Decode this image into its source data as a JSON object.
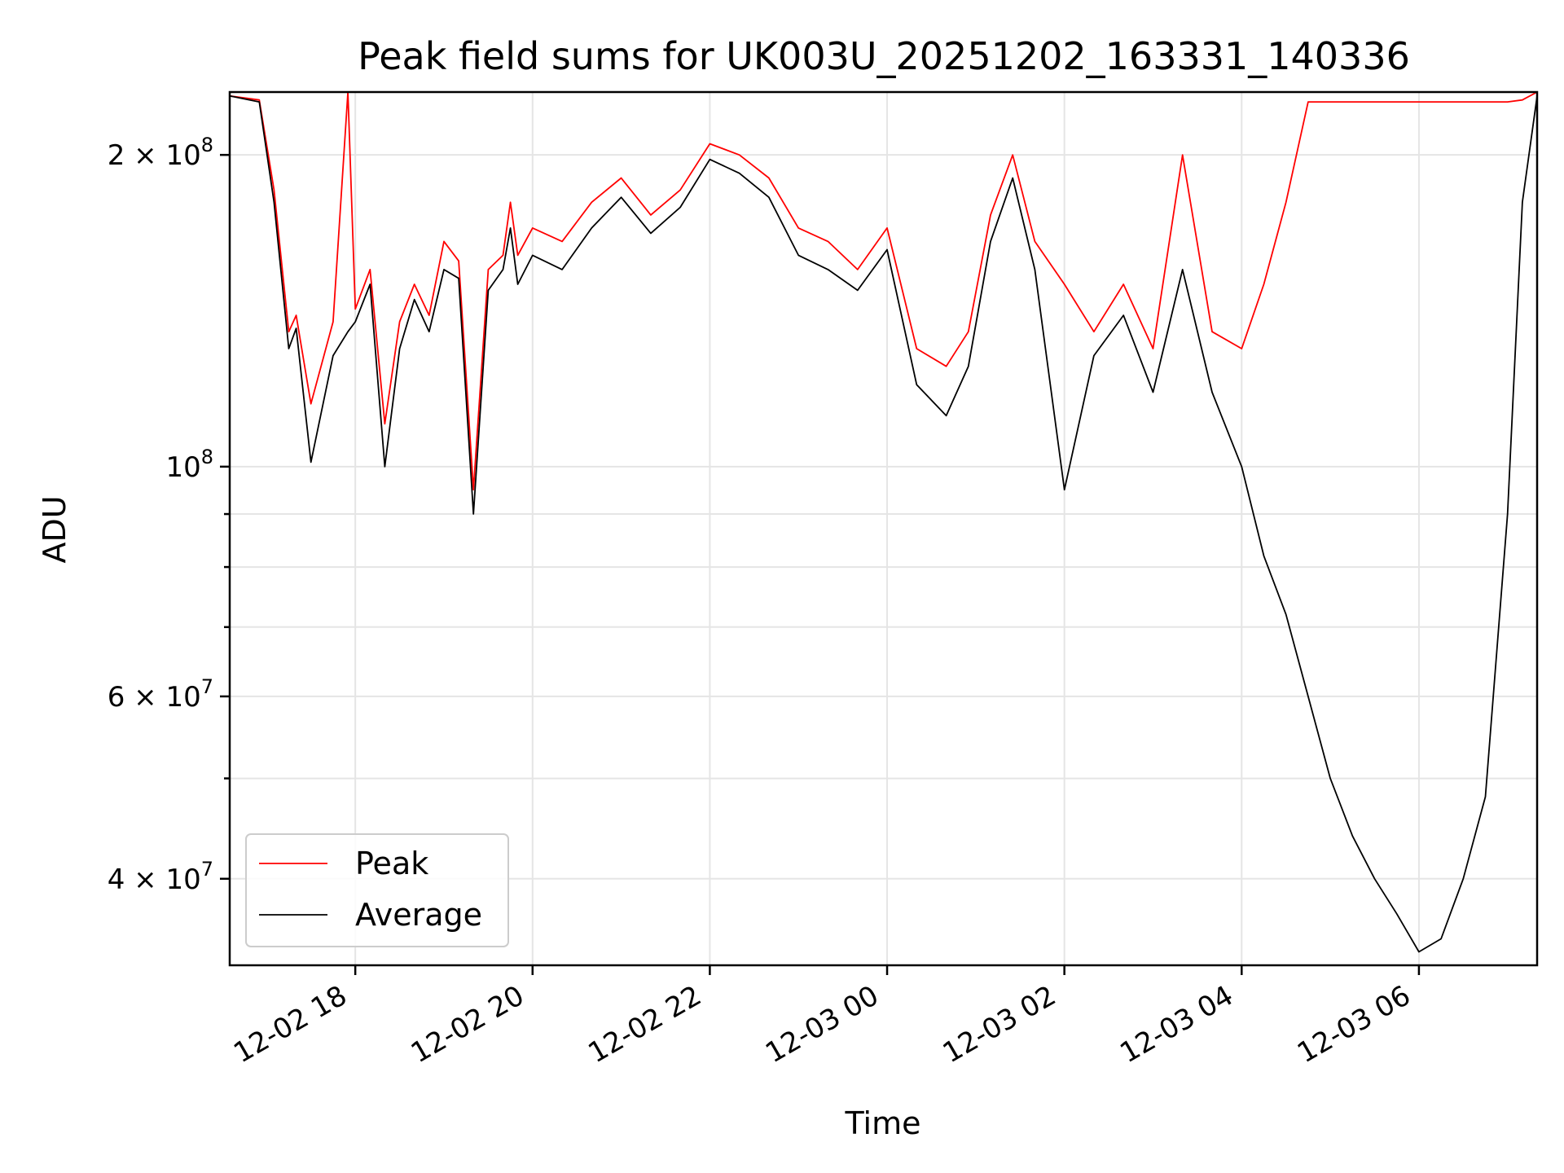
{
  "chart_data": {
    "type": "line",
    "title": "Peak field sums for UK003U_20251202_163331_140336",
    "xlabel": "Time",
    "ylabel": "ADU",
    "yscale": "log",
    "xlim": [
      "2025-12-02 16:35",
      "2025-12-03 07:20"
    ],
    "ylim": [
      33000000,
      230000000
    ],
    "grid": true,
    "legend_position": "lower-left",
    "x_ticks": [
      {
        "t": "2025-12-02 18:00",
        "label": "12-02 18"
      },
      {
        "t": "2025-12-02 20:00",
        "label": "12-02 20"
      },
      {
        "t": "2025-12-02 22:00",
        "label": "12-02 22"
      },
      {
        "t": "2025-12-03 00:00",
        "label": "12-03 00"
      },
      {
        "t": "2025-12-03 02:00",
        "label": "12-03 02"
      },
      {
        "t": "2025-12-03 04:00",
        "label": "12-03 04"
      },
      {
        "t": "2025-12-03 06:00",
        "label": "12-03 06"
      }
    ],
    "y_major_ticks": [
      {
        "value": 40000000,
        "base": "4 × 10",
        "exp": "7"
      },
      {
        "value": 60000000,
        "base": "6 × 10",
        "exp": "7"
      },
      {
        "value": 100000000,
        "base": "10",
        "exp": "8"
      },
      {
        "value": 200000000,
        "base": "2 × 10",
        "exp": "8"
      }
    ],
    "y_minor_ticks": [
      50000000,
      70000000,
      80000000,
      90000000,
      300000000
    ],
    "series": [
      {
        "name": "Peak",
        "color": "#ff0000",
        "x": [
          "2025-12-02 16:35",
          "2025-12-02 16:55",
          "2025-12-02 17:05",
          "2025-12-02 17:15",
          "2025-12-02 17:20",
          "2025-12-02 17:30",
          "2025-12-02 17:45",
          "2025-12-02 17:55",
          "2025-12-02 18:00",
          "2025-12-02 18:10",
          "2025-12-02 18:20",
          "2025-12-02 18:30",
          "2025-12-02 18:40",
          "2025-12-02 18:50",
          "2025-12-02 19:00",
          "2025-12-02 19:10",
          "2025-12-02 19:20",
          "2025-12-02 19:30",
          "2025-12-02 19:40",
          "2025-12-02 19:45",
          "2025-12-02 19:50",
          "2025-12-02 20:00",
          "2025-12-02 20:20",
          "2025-12-02 20:40",
          "2025-12-02 21:00",
          "2025-12-02 21:20",
          "2025-12-02 21:40",
          "2025-12-02 22:00",
          "2025-12-02 22:20",
          "2025-12-02 22:40",
          "2025-12-02 23:00",
          "2025-12-02 23:20",
          "2025-12-02 23:40",
          "2025-12-03 00:00",
          "2025-12-03 00:20",
          "2025-12-03 00:40",
          "2025-12-03 00:55",
          "2025-12-03 01:10",
          "2025-12-03 01:25",
          "2025-12-03 01:40",
          "2025-12-03 02:00",
          "2025-12-03 02:20",
          "2025-12-03 02:40",
          "2025-12-03 03:00",
          "2025-12-03 03:20",
          "2025-12-03 03:40",
          "2025-12-03 04:00",
          "2025-12-03 04:15",
          "2025-12-03 04:30",
          "2025-12-03 04:45",
          "2025-12-03 05:00",
          "2025-12-03 05:15",
          "2025-12-03 05:30",
          "2025-12-03 05:45",
          "2025-12-03 06:00",
          "2025-12-03 06:15",
          "2025-12-03 06:30",
          "2025-12-03 06:45",
          "2025-12-03 07:00",
          "2025-12-03 07:10",
          "2025-12-03 07:20"
        ],
        "values": [
          228000000,
          226000000,
          185000000,
          135000000,
          140000000,
          115000000,
          138000000,
          230000000,
          142000000,
          155000000,
          110000000,
          138000000,
          150000000,
          140000000,
          165000000,
          158000000,
          95000000,
          155000000,
          160000000,
          180000000,
          160000000,
          170000000,
          165000000,
          180000000,
          190000000,
          175000000,
          185000000,
          205000000,
          200000000,
          190000000,
          170000000,
          165000000,
          155000000,
          170000000,
          130000000,
          125000000,
          135000000,
          175000000,
          200000000,
          165000000,
          150000000,
          135000000,
          150000000,
          130000000,
          200000000,
          135000000,
          130000000,
          150000000,
          180000000,
          225000000,
          225000000,
          225000000,
          225000000,
          225000000,
          225000000,
          225000000,
          225000000,
          225000000,
          225000000,
          226000000,
          230000000
        ]
      },
      {
        "name": "Average",
        "color": "#000000",
        "x": [
          "2025-12-02 16:35",
          "2025-12-02 16:55",
          "2025-12-02 17:05",
          "2025-12-02 17:15",
          "2025-12-02 17:20",
          "2025-12-02 17:30",
          "2025-12-02 17:45",
          "2025-12-02 17:55",
          "2025-12-02 18:00",
          "2025-12-02 18:10",
          "2025-12-02 18:20",
          "2025-12-02 18:30",
          "2025-12-02 18:40",
          "2025-12-02 18:50",
          "2025-12-02 19:00",
          "2025-12-02 19:10",
          "2025-12-02 19:20",
          "2025-12-02 19:30",
          "2025-12-02 19:40",
          "2025-12-02 19:45",
          "2025-12-02 19:50",
          "2025-12-02 20:00",
          "2025-12-02 20:20",
          "2025-12-02 20:40",
          "2025-12-02 21:00",
          "2025-12-02 21:20",
          "2025-12-02 21:40",
          "2025-12-02 22:00",
          "2025-12-02 22:20",
          "2025-12-02 22:40",
          "2025-12-02 23:00",
          "2025-12-02 23:20",
          "2025-12-02 23:40",
          "2025-12-03 00:00",
          "2025-12-03 00:20",
          "2025-12-03 00:40",
          "2025-12-03 00:55",
          "2025-12-03 01:10",
          "2025-12-03 01:25",
          "2025-12-03 01:40",
          "2025-12-03 02:00",
          "2025-12-03 02:20",
          "2025-12-03 02:40",
          "2025-12-03 03:00",
          "2025-12-03 03:20",
          "2025-12-03 03:40",
          "2025-12-03 04:00",
          "2025-12-03 04:15",
          "2025-12-03 04:30",
          "2025-12-03 04:45",
          "2025-12-03 05:00",
          "2025-12-03 05:15",
          "2025-12-03 05:30",
          "2025-12-03 05:45",
          "2025-12-03 06:00",
          "2025-12-03 06:15",
          "2025-12-03 06:30",
          "2025-12-03 06:45",
          "2025-12-03 07:00",
          "2025-12-03 07:10",
          "2025-12-03 07:20"
        ],
        "values": [
          228000000,
          225000000,
          180000000,
          130000000,
          136000000,
          101000000,
          128000000,
          135000000,
          138000000,
          150000000,
          100000000,
          130000000,
          145000000,
          135000000,
          155000000,
          152000000,
          90000000,
          148000000,
          155000000,
          170000000,
          150000000,
          160000000,
          155000000,
          170000000,
          182000000,
          168000000,
          178000000,
          198000000,
          192000000,
          182000000,
          160000000,
          155000000,
          148000000,
          162000000,
          120000000,
          112000000,
          125000000,
          165000000,
          190000000,
          155000000,
          95000000,
          128000000,
          140000000,
          118000000,
          155000000,
          118000000,
          100000000,
          82000000,
          72000000,
          60000000,
          50000000,
          44000000,
          40000000,
          37000000,
          34000000,
          35000000,
          40000000,
          48000000,
          90000000,
          180000000,
          228000000
        ]
      }
    ]
  }
}
